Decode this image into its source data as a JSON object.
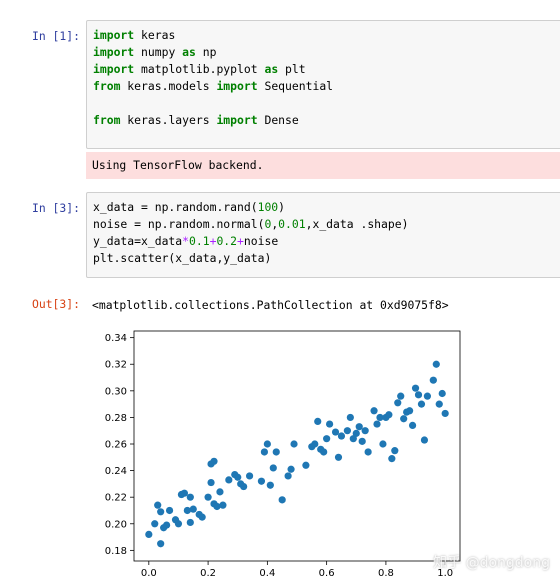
{
  "cell1": {
    "prompt": "In [1]:",
    "lines": [
      [
        [
          "kw",
          "import"
        ],
        [
          "t",
          " keras"
        ]
      ],
      [
        [
          "kw",
          "import"
        ],
        [
          "t",
          " numpy "
        ],
        [
          "kw",
          "as"
        ],
        [
          "t",
          " np"
        ]
      ],
      [
        [
          "kw",
          "import"
        ],
        [
          "t",
          " matplotlib.pyplot "
        ],
        [
          "kw",
          "as"
        ],
        [
          "t",
          " plt"
        ]
      ],
      [
        [
          "kw",
          "from"
        ],
        [
          "t",
          " keras.models "
        ],
        [
          "kw",
          "import"
        ],
        [
          "t",
          " Sequential"
        ]
      ],
      [],
      [
        [
          "kw",
          "from"
        ],
        [
          "t",
          " keras.layers "
        ],
        [
          "kw",
          "import"
        ],
        [
          "t",
          " Dense"
        ]
      ]
    ],
    "stderr": "Using TensorFlow backend."
  },
  "cell3": {
    "prompt": "In [3]:",
    "lines": [
      [
        [
          "t",
          "x_data = np.random.rand("
        ],
        [
          "num",
          "100"
        ],
        [
          "t",
          ")"
        ]
      ],
      [
        [
          "t",
          "noise = np.random.normal("
        ],
        [
          "num",
          "0"
        ],
        [
          "t",
          ","
        ],
        [
          "num",
          "0.01"
        ],
        [
          "t",
          ",x_data .shape)"
        ]
      ],
      [
        [
          "t",
          "y_data=x_data"
        ],
        [
          "op",
          "*"
        ],
        [
          "num",
          "0.1"
        ],
        [
          "op",
          "+"
        ],
        [
          "num",
          "0.2"
        ],
        [
          "op",
          "+"
        ],
        [
          "t",
          "noise"
        ]
      ],
      [
        [
          "t",
          "plt.scatter(x_data,y_data)"
        ]
      ]
    ],
    "out_prompt": "Out[3]:",
    "out_text": "<matplotlib.collections.PathCollection at 0xd9075f8>"
  },
  "watermark": "知乎 @dongdong",
  "chart_data": {
    "type": "scatter",
    "color": "#1f77b4",
    "xlim": [
      -0.05,
      1.05
    ],
    "ylim": [
      0.172,
      0.345
    ],
    "xticks": [
      "0.0",
      "0.2",
      "0.4",
      "0.6",
      "0.8",
      "1.0"
    ],
    "yticks": [
      "0.18",
      "0.20",
      "0.22",
      "0.24",
      "0.26",
      "0.28",
      "0.30",
      "0.32",
      "0.34"
    ],
    "x": [
      0.0,
      0.02,
      0.03,
      0.04,
      0.04,
      0.05,
      0.06,
      0.07,
      0.09,
      0.1,
      0.11,
      0.12,
      0.13,
      0.14,
      0.14,
      0.15,
      0.17,
      0.18,
      0.2,
      0.21,
      0.21,
      0.22,
      0.22,
      0.23,
      0.24,
      0.25,
      0.27,
      0.29,
      0.3,
      0.31,
      0.32,
      0.34,
      0.38,
      0.39,
      0.4,
      0.41,
      0.42,
      0.43,
      0.45,
      0.47,
      0.48,
      0.49,
      0.53,
      0.55,
      0.56,
      0.57,
      0.58,
      0.59,
      0.6,
      0.61,
      0.63,
      0.64,
      0.65,
      0.67,
      0.68,
      0.69,
      0.7,
      0.71,
      0.72,
      0.73,
      0.74,
      0.76,
      0.77,
      0.78,
      0.79,
      0.8,
      0.81,
      0.82,
      0.83,
      0.84,
      0.85,
      0.86,
      0.87,
      0.88,
      0.89,
      0.9,
      0.91,
      0.92,
      0.93,
      0.94,
      0.96,
      0.97,
      0.98,
      0.99,
      1.0
    ],
    "y": [
      0.192,
      0.2,
      0.214,
      0.185,
      0.209,
      0.197,
      0.199,
      0.21,
      0.203,
      0.2,
      0.222,
      0.223,
      0.21,
      0.22,
      0.201,
      0.211,
      0.207,
      0.205,
      0.22,
      0.245,
      0.231,
      0.247,
      0.215,
      0.213,
      0.224,
      0.214,
      0.233,
      0.237,
      0.235,
      0.23,
      0.228,
      0.236,
      0.232,
      0.254,
      0.26,
      0.229,
      0.242,
      0.254,
      0.218,
      0.236,
      0.241,
      0.26,
      0.244,
      0.258,
      0.26,
      0.277,
      0.256,
      0.254,
      0.264,
      0.275,
      0.269,
      0.25,
      0.266,
      0.27,
      0.28,
      0.264,
      0.268,
      0.273,
      0.262,
      0.27,
      0.254,
      0.285,
      0.275,
      0.28,
      0.26,
      0.28,
      0.282,
      0.249,
      0.255,
      0.291,
      0.296,
      0.279,
      0.284,
      0.285,
      0.274,
      0.302,
      0.297,
      0.29,
      0.263,
      0.296,
      0.308,
      0.32,
      0.29,
      0.298,
      0.283
    ]
  }
}
